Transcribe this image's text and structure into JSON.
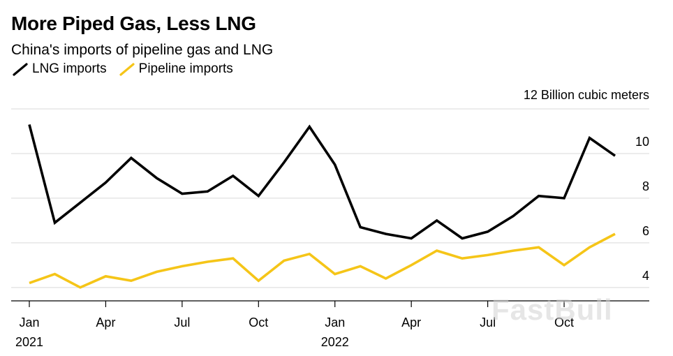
{
  "chart_data": {
    "type": "line",
    "title": "More Piped Gas, Less LNG",
    "subtitle": "China's imports of pipeline gas and LNG",
    "unit_label": "12 Billion cubic meters",
    "ylim": [
      3.4,
      12
    ],
    "yticks": [
      4,
      6,
      8,
      10
    ],
    "xlim": [
      0,
      24
    ],
    "xticks": [
      {
        "x": 0,
        "label": "Jan",
        "year": "2021"
      },
      {
        "x": 3,
        "label": "Apr",
        "year": ""
      },
      {
        "x": 6,
        "label": "Jul",
        "year": ""
      },
      {
        "x": 9,
        "label": "Oct",
        "year": ""
      },
      {
        "x": 12,
        "label": "Jan",
        "year": "2022"
      },
      {
        "x": 15,
        "label": "Apr",
        "year": ""
      },
      {
        "x": 18,
        "label": "Jul",
        "year": ""
      },
      {
        "x": 21,
        "label": "Oct",
        "year": ""
      }
    ],
    "months": [
      "2021-01",
      "2021-02",
      "2021-03",
      "2021-04",
      "2021-05",
      "2021-06",
      "2021-07",
      "2021-08",
      "2021-09",
      "2021-10",
      "2021-11",
      "2021-12",
      "2022-01",
      "2022-02",
      "2022-03",
      "2022-04",
      "2022-05",
      "2022-06",
      "2022-07",
      "2022-08",
      "2022-09",
      "2022-10",
      "2022-11",
      "2022-12"
    ],
    "series": [
      {
        "name": "LNG imports",
        "color": "#000000",
        "values": [
          11.3,
          6.9,
          7.8,
          8.7,
          9.8,
          8.9,
          8.2,
          8.3,
          9.0,
          8.1,
          9.6,
          11.2,
          9.5,
          6.7,
          6.4,
          6.2,
          7.0,
          6.2,
          6.5,
          7.2,
          8.1,
          8.0,
          10.7,
          9.9
        ]
      },
      {
        "name": "Pipeline imports",
        "color": "#f5c518",
        "values": [
          4.2,
          4.6,
          4.0,
          4.5,
          4.3,
          4.7,
          4.95,
          5.15,
          5.3,
          4.3,
          5.2,
          5.5,
          4.6,
          4.95,
          4.4,
          5.0,
          5.65,
          5.3,
          5.45,
          5.65,
          5.8,
          5.0,
          5.8,
          6.4
        ]
      }
    ]
  },
  "watermark": "FastBull"
}
